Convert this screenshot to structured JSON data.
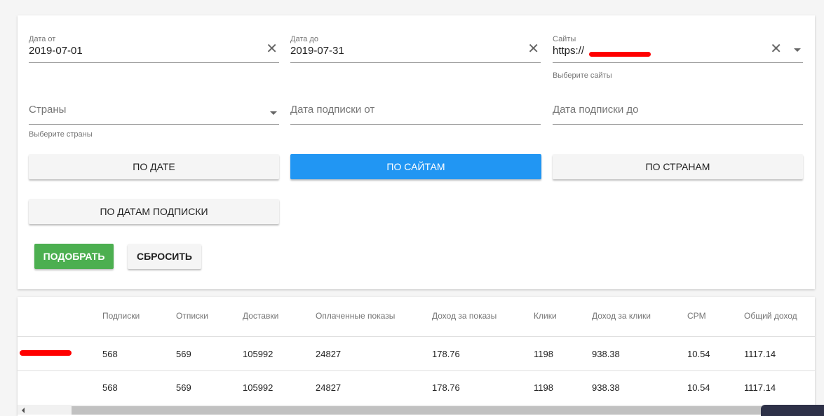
{
  "filters": {
    "date_from": {
      "label": "Дата от",
      "value": "2019-07-01"
    },
    "date_to": {
      "label": "Дата до",
      "value": "2019-07-31"
    },
    "sites": {
      "label": "Сайты",
      "value": "https://",
      "hint": "Выберите сайты"
    },
    "countries": {
      "placeholder": "Страны",
      "hint": "Выберите страны"
    },
    "sub_from": {
      "placeholder": "Дата подписки от"
    },
    "sub_to": {
      "placeholder": "Дата подписки до"
    }
  },
  "group_buttons": {
    "by_date": "ПО ДАТЕ",
    "by_sites": "ПО САЙТАМ",
    "by_countries": "ПО СТРАНАМ",
    "by_sub_dates": "ПО ДАТАМ ПОДПИСКИ"
  },
  "actions": {
    "apply": "ПОДОБРАТЬ",
    "reset": "СБРОСИТЬ"
  },
  "colors": {
    "active": "#2196f3",
    "apply": "#4caf50"
  },
  "table": {
    "headers": [
      "",
      "Подписки",
      "Отписки",
      "Доставки",
      "Оплаченные показы",
      "Доход за показы",
      "Клики",
      "Доход за клики",
      "CPM",
      "Общий доход"
    ],
    "rows": [
      [
        "",
        "568",
        "569",
        "105992",
        "24827",
        "178.76",
        "1198",
        "938.38",
        "10.54",
        "1117.14"
      ],
      [
        "",
        "568",
        "569",
        "105992",
        "24827",
        "178.76",
        "1198",
        "938.38",
        "10.54",
        "1117.14"
      ]
    ]
  }
}
